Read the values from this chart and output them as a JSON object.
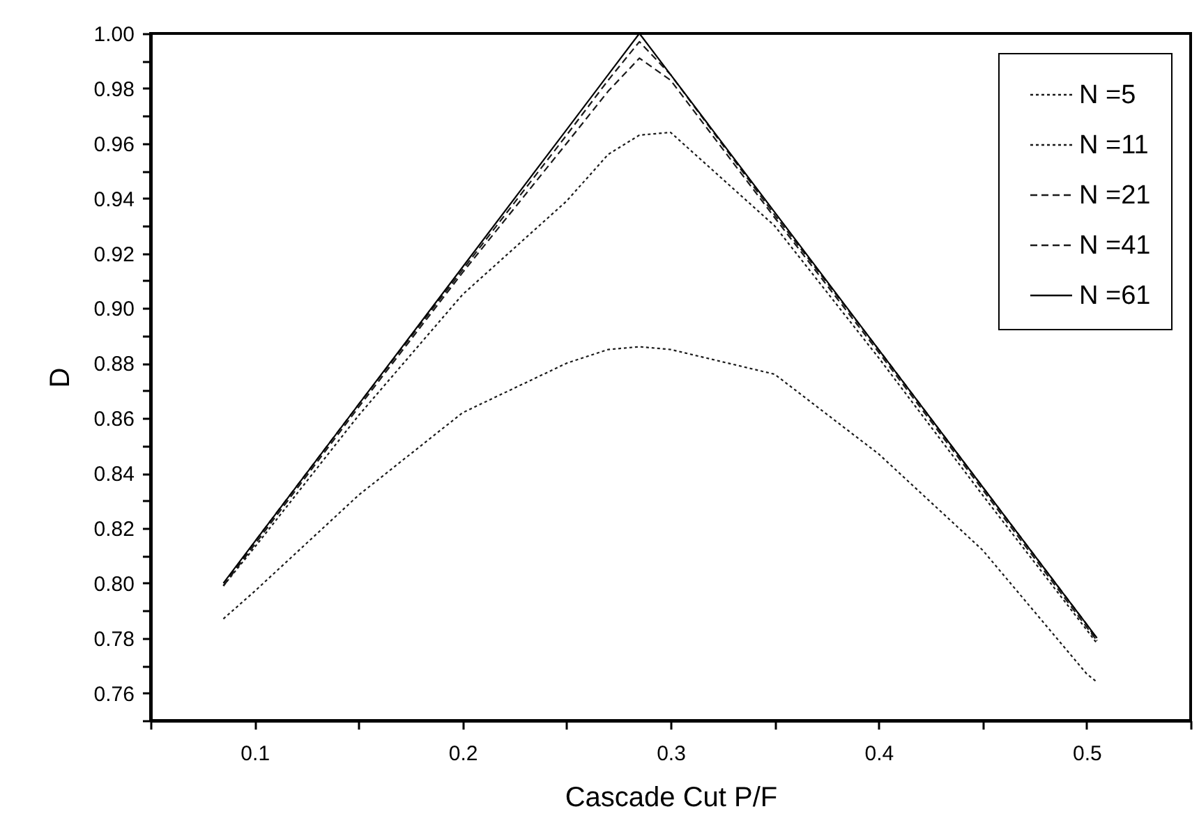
{
  "chart_data": {
    "type": "line",
    "xlabel": "Cascade Cut P/F",
    "ylabel": "D",
    "xlim": [
      0.05,
      0.55
    ],
    "ylim": [
      0.75,
      1.0
    ],
    "xticks": [
      {
        "value": 0.05,
        "label": null
      },
      0.1,
      {
        "value": 0.15,
        "label": null
      },
      0.2,
      {
        "value": 0.25,
        "label": null
      },
      0.3,
      {
        "value": 0.35,
        "label": null
      },
      0.4,
      {
        "value": 0.45,
        "label": null
      },
      0.5,
      {
        "value": 0.55,
        "label": null
      }
    ],
    "yticks": [
      {
        "value": 0.75,
        "label": null
      },
      {
        "value": 0.76,
        "label": "0.76"
      },
      {
        "value": 0.77,
        "label": null
      },
      {
        "value": 0.78,
        "label": "0.78"
      },
      {
        "value": 0.79,
        "label": null
      },
      {
        "value": 0.8,
        "label": "0.80"
      },
      {
        "value": 0.81,
        "label": null
      },
      {
        "value": 0.82,
        "label": "0.82"
      },
      {
        "value": 0.83,
        "label": null
      },
      {
        "value": 0.84,
        "label": "0.84"
      },
      {
        "value": 0.85,
        "label": null
      },
      {
        "value": 0.86,
        "label": "0.86"
      },
      {
        "value": 0.87,
        "label": null
      },
      {
        "value": 0.88,
        "label": "0.88"
      },
      {
        "value": 0.89,
        "label": null
      },
      {
        "value": 0.9,
        "label": "0.90"
      },
      {
        "value": 0.91,
        "label": null
      },
      {
        "value": 0.92,
        "label": "0.92"
      },
      {
        "value": 0.93,
        "label": null
      },
      {
        "value": 0.94,
        "label": "0.94"
      },
      {
        "value": 0.95,
        "label": null
      },
      {
        "value": 0.96,
        "label": "0.96"
      },
      {
        "value": 0.97,
        "label": null
      },
      {
        "value": 0.98,
        "label": "0.98"
      },
      {
        "value": 0.99,
        "label": null
      },
      {
        "value": 1.0,
        "label": "1.00"
      }
    ],
    "grid": false,
    "legend": "top right",
    "x": [
      0.085,
      0.1,
      0.15,
      0.2,
      0.25,
      0.27,
      0.285,
      0.3,
      0.35,
      0.4,
      0.45,
      0.5,
      0.505
    ],
    "series": [
      {
        "name": "N =5",
        "color": "#1a1a1a",
        "line_style": "dotted",
        "values": [
          0.787,
          0.797,
          0.832,
          0.862,
          0.88,
          0.885,
          0.886,
          0.885,
          0.876,
          0.847,
          0.812,
          0.767,
          0.764
        ]
      },
      {
        "name": "N =11",
        "color": "#1a1a1a",
        "line_style": "dotted",
        "values": [
          0.799,
          0.813,
          0.861,
          0.905,
          0.939,
          0.956,
          0.963,
          0.964,
          0.93,
          0.882,
          0.832,
          0.783,
          0.778
        ]
      },
      {
        "name": "N =21",
        "color": "#1a1a1a",
        "line_style": "dashed",
        "values": [
          0.799,
          0.814,
          0.864,
          0.913,
          0.96,
          0.979,
          0.991,
          0.983,
          0.933,
          0.884,
          0.834,
          0.784,
          0.779
        ]
      },
      {
        "name": "N =41",
        "color": "#1a1a1a",
        "line_style": "dashed",
        "values": [
          0.799,
          0.815,
          0.865,
          0.914,
          0.963,
          0.983,
          0.997,
          0.985,
          0.934,
          0.885,
          0.835,
          0.785,
          0.779
        ]
      },
      {
        "name": "N =61",
        "color": "#000000",
        "line_style": "solid",
        "values": [
          0.8,
          0.815,
          0.865,
          0.915,
          0.965,
          0.985,
          1.0,
          0.985,
          0.935,
          0.885,
          0.835,
          0.785,
          0.78
        ]
      }
    ]
  }
}
